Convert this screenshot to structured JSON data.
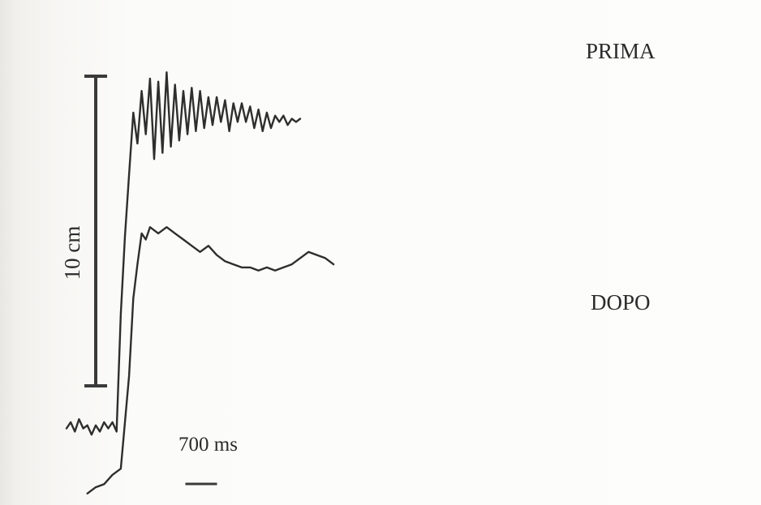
{
  "chart_data": {
    "type": "line",
    "title": "",
    "xlabel": "",
    "ylabel": "",
    "scale_bars": {
      "vertical": {
        "label": "10 cm",
        "value": 10,
        "unit": "cm"
      },
      "horizontal": {
        "label": "700 ms",
        "value": 700,
        "unit": "ms"
      }
    },
    "series": [
      {
        "name": "PRIMA",
        "color": "#2e2e2e",
        "points": [
          [
            0,
            0.3
          ],
          [
            100,
            0.5
          ],
          [
            200,
            0.2
          ],
          [
            300,
            0.6
          ],
          [
            400,
            0.3
          ],
          [
            500,
            0.4
          ],
          [
            600,
            0.1
          ],
          [
            700,
            0.4
          ],
          [
            800,
            0.2
          ],
          [
            900,
            0.5
          ],
          [
            1000,
            0.3
          ],
          [
            1100,
            0.5
          ],
          [
            1200,
            0.2
          ],
          [
            1300,
            4
          ],
          [
            1400,
            6.5
          ],
          [
            1500,
            8.5
          ],
          [
            1600,
            10.5
          ],
          [
            1700,
            9.5
          ],
          [
            1800,
            11.2
          ],
          [
            1900,
            9.8
          ],
          [
            2000,
            11.6
          ],
          [
            2100,
            9.0
          ],
          [
            2200,
            11.5
          ],
          [
            2300,
            9.2
          ],
          [
            2400,
            11.8
          ],
          [
            2500,
            9.4
          ],
          [
            2600,
            11.4
          ],
          [
            2700,
            9.6
          ],
          [
            2800,
            11.2
          ],
          [
            2900,
            9.8
          ],
          [
            3000,
            11.3
          ],
          [
            3100,
            9.9
          ],
          [
            3200,
            11.2
          ],
          [
            3300,
            10.0
          ],
          [
            3400,
            11.0
          ],
          [
            3500,
            10.1
          ],
          [
            3600,
            11.0
          ],
          [
            3700,
            10.2
          ],
          [
            3800,
            10.9
          ],
          [
            3900,
            9.9
          ],
          [
            4000,
            10.8
          ],
          [
            4100,
            10.2
          ],
          [
            4200,
            10.8
          ],
          [
            4300,
            10.2
          ],
          [
            4400,
            10.7
          ],
          [
            4500,
            10.0
          ],
          [
            4600,
            10.6
          ],
          [
            4700,
            9.9
          ],
          [
            4800,
            10.5
          ],
          [
            4900,
            10.0
          ],
          [
            5000,
            10.4
          ],
          [
            5100,
            10.2
          ],
          [
            5200,
            10.4
          ],
          [
            5300,
            10.1
          ],
          [
            5400,
            10.3
          ],
          [
            5500,
            10.2
          ],
          [
            5600,
            10.3
          ]
        ]
      },
      {
        "name": "DOPO",
        "color": "#2e2e2e",
        "points": [
          [
            500,
            -1.8
          ],
          [
            700,
            -1.6
          ],
          [
            900,
            -1.5
          ],
          [
            1100,
            -1.2
          ],
          [
            1300,
            -1.0
          ],
          [
            1500,
            2.0
          ],
          [
            1600,
            4.5
          ],
          [
            1700,
            5.6
          ],
          [
            1800,
            6.6
          ],
          [
            1900,
            6.4
          ],
          [
            2000,
            6.8
          ],
          [
            2200,
            6.6
          ],
          [
            2400,
            6.8
          ],
          [
            2600,
            6.6
          ],
          [
            2800,
            6.4
          ],
          [
            3000,
            6.2
          ],
          [
            3200,
            6.0
          ],
          [
            3400,
            6.2
          ],
          [
            3600,
            5.9
          ],
          [
            3800,
            5.7
          ],
          [
            4000,
            5.6
          ],
          [
            4200,
            5.5
          ],
          [
            4400,
            5.5
          ],
          [
            4600,
            5.4
          ],
          [
            4800,
            5.5
          ],
          [
            5000,
            5.4
          ],
          [
            5200,
            5.5
          ],
          [
            5400,
            5.6
          ],
          [
            5600,
            5.8
          ],
          [
            5800,
            6.0
          ],
          [
            6000,
            5.9
          ],
          [
            6200,
            5.8
          ],
          [
            6400,
            5.6
          ]
        ]
      }
    ]
  }
}
